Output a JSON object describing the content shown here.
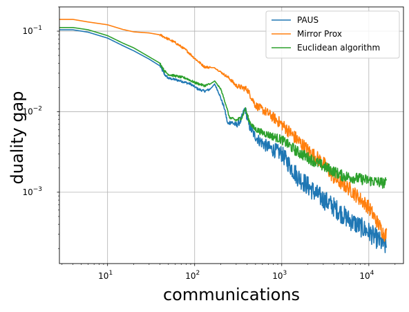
{
  "chart_data": {
    "type": "line",
    "title": "",
    "xlabel": "communications",
    "ylabel": "duality gap",
    "xscale": "log",
    "yscale": "log",
    "xlim": [
      2.8,
      25000
    ],
    "ylim": [
      0.00013,
      0.2
    ],
    "grid": true,
    "legend_position": "top-right",
    "x_tick_labels": [
      {
        "base": "10",
        "exp": "1",
        "value": 10
      },
      {
        "base": "10",
        "exp": "2",
        "value": 100
      },
      {
        "base": "10",
        "exp": "3",
        "value": 1000
      },
      {
        "base": "10",
        "exp": "4",
        "value": 10000
      }
    ],
    "y_tick_labels": [
      {
        "base": "10",
        "exp": "−3",
        "value": 0.001
      },
      {
        "base": "10",
        "exp": "−2",
        "value": 0.01
      },
      {
        "base": "10",
        "exp": "−1",
        "value": 0.1
      }
    ],
    "series": [
      {
        "name": "PAUS",
        "color": "#1f77b4",
        "noise_start": 150,
        "noise_amp": 0.25,
        "points": [
          [
            2.8,
            0.104
          ],
          [
            4,
            0.104
          ],
          [
            6,
            0.097
          ],
          [
            10,
            0.082
          ],
          [
            15,
            0.066
          ],
          [
            20,
            0.057
          ],
          [
            30,
            0.045
          ],
          [
            40,
            0.037
          ],
          [
            45,
            0.029
          ],
          [
            50,
            0.026
          ],
          [
            60,
            0.025
          ],
          [
            70,
            0.024
          ],
          [
            90,
            0.022
          ],
          [
            110,
            0.019
          ],
          [
            130,
            0.018
          ],
          [
            150,
            0.019
          ],
          [
            170,
            0.022
          ],
          [
            190,
            0.017
          ],
          [
            220,
            0.011
          ],
          [
            240,
            0.007
          ],
          [
            260,
            0.0075
          ],
          [
            300,
            0.0068
          ],
          [
            340,
            0.0078
          ],
          [
            380,
            0.011
          ],
          [
            420,
            0.0068
          ],
          [
            480,
            0.0052
          ],
          [
            550,
            0.0044
          ],
          [
            700,
            0.0036
          ],
          [
            1000,
            0.003
          ],
          [
            1500,
            0.0016
          ],
          [
            2500,
            0.00095
          ],
          [
            4000,
            0.00065
          ],
          [
            6000,
            0.00045
          ],
          [
            10000,
            0.00032
          ],
          [
            15000,
            0.00022
          ],
          [
            16000,
            0.00021
          ]
        ]
      },
      {
        "name": "Mirror Prox",
        "color": "#ff7f0e",
        "noise_start": 150,
        "noise_amp": 0.18,
        "points": [
          [
            2.8,
            0.14
          ],
          [
            4,
            0.14
          ],
          [
            6,
            0.13
          ],
          [
            10,
            0.12
          ],
          [
            15,
            0.105
          ],
          [
            20,
            0.098
          ],
          [
            30,
            0.095
          ],
          [
            40,
            0.09
          ],
          [
            60,
            0.072
          ],
          [
            80,
            0.058
          ],
          [
            100,
            0.046
          ],
          [
            130,
            0.036
          ],
          [
            170,
            0.035
          ],
          [
            200,
            0.031
          ],
          [
            250,
            0.026
          ],
          [
            300,
            0.021
          ],
          [
            400,
            0.019
          ],
          [
            450,
            0.015
          ],
          [
            500,
            0.012
          ],
          [
            700,
            0.0095
          ],
          [
            1000,
            0.007
          ],
          [
            1500,
            0.0045
          ],
          [
            2000,
            0.0033
          ],
          [
            3000,
            0.0023
          ],
          [
            4000,
            0.0015
          ],
          [
            6000,
            0.0011
          ],
          [
            10000,
            0.00065
          ],
          [
            15000,
            0.0003
          ],
          [
            16000,
            0.0003
          ]
        ]
      },
      {
        "name": "Euclidean algorithm",
        "color": "#2ca02c",
        "noise_start": 150,
        "noise_amp": 0.14,
        "points": [
          [
            2.8,
            0.111
          ],
          [
            4,
            0.111
          ],
          [
            6,
            0.104
          ],
          [
            10,
            0.088
          ],
          [
            15,
            0.071
          ],
          [
            20,
            0.062
          ],
          [
            30,
            0.048
          ],
          [
            40,
            0.04
          ],
          [
            45,
            0.032
          ],
          [
            50,
            0.029
          ],
          [
            80,
            0.026
          ],
          [
            100,
            0.023
          ],
          [
            130,
            0.021
          ],
          [
            150,
            0.022
          ],
          [
            170,
            0.024
          ],
          [
            200,
            0.019
          ],
          [
            230,
            0.012
          ],
          [
            250,
            0.0085
          ],
          [
            300,
            0.0078
          ],
          [
            350,
            0.0085
          ],
          [
            380,
            0.011
          ],
          [
            420,
            0.0078
          ],
          [
            480,
            0.0062
          ],
          [
            600,
            0.0055
          ],
          [
            1000,
            0.0045
          ],
          [
            1500,
            0.0032
          ],
          [
            3000,
            0.0021
          ],
          [
            5000,
            0.0016
          ],
          [
            10000,
            0.0014
          ],
          [
            15000,
            0.0013
          ],
          [
            16000,
            0.0013
          ]
        ]
      }
    ]
  }
}
